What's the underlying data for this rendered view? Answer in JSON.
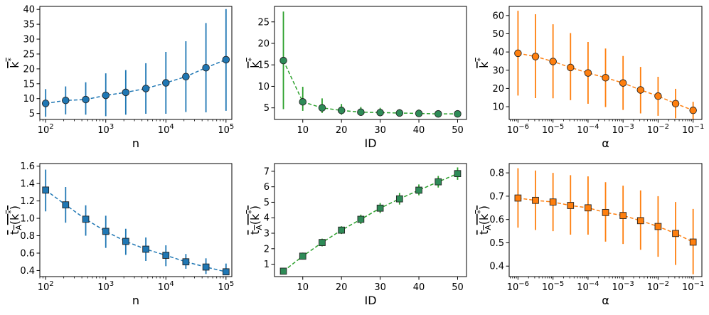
{
  "chart_data": [
    {
      "id": "p1",
      "type": "line",
      "xscale": "log",
      "xlim": [
        80,
        125000
      ],
      "ylim": [
        3,
        41
      ],
      "xticks": [
        100,
        1000,
        10000,
        100000
      ],
      "xtick_labels": [
        "10^2",
        "10^3",
        "10^4",
        "10^5"
      ],
      "yticks": [
        5,
        10,
        15,
        20,
        25,
        30,
        35,
        40
      ],
      "ytick_labels": [
        "5",
        "10",
        "15",
        "20",
        "25",
        "30",
        "35",
        "40"
      ],
      "xlabel": "n",
      "ylabel_text": "k",
      "ylabel_sup": "*",
      "ylabel_parts": [
        "k"
      ],
      "color": "#1f77b4",
      "marker": "circle",
      "series": [
        {
          "name": "mean",
          "x": [
            100,
            215,
            464,
            1000,
            2150,
            4640,
            10000,
            21500,
            46400,
            100000
          ],
          "y": [
            8.4,
            9.4,
            9.7,
            11.1,
            12.1,
            13.4,
            15.3,
            17.4,
            20.4,
            23.1
          ],
          "err_low": [
            3.9,
            4.7,
            4.6,
            4.1,
            4.6,
            4.9,
            4.9,
            5.5,
            5.4,
            5.9
          ],
          "err_high": [
            13.2,
            14.1,
            15.5,
            18.5,
            19.6,
            21.9,
            25.7,
            29.3,
            35.4,
            40.1
          ]
        }
      ]
    },
    {
      "id": "p2",
      "type": "line",
      "xscale": "linear",
      "xlim": [
        2.7,
        52.3
      ],
      "ylim": [
        2.3,
        28.6
      ],
      "xticks": [
        10,
        20,
        30,
        40,
        50
      ],
      "xtick_labels": [
        "10",
        "20",
        "30",
        "40",
        "50"
      ],
      "yticks": [
        5,
        10,
        15,
        20,
        25
      ],
      "ytick_labels": [
        "5",
        "10",
        "15",
        "20",
        "25"
      ],
      "xlabel": "ID",
      "ylabel_text": "k",
      "ylabel_sup": "*",
      "ylabel_parts": [
        "k"
      ],
      "color": "#2ca02c",
      "marker_fill": "#2e8b57",
      "marker": "circle",
      "series": [
        {
          "name": "mean",
          "x": [
            5,
            10,
            15,
            20,
            25,
            30,
            35,
            40,
            45,
            50
          ],
          "y": [
            16.0,
            6.4,
            5.0,
            4.4,
            4.0,
            3.9,
            3.8,
            3.7,
            3.6,
            3.6
          ],
          "err_low": [
            4.7,
            4.3,
            3.8,
            3.4,
            3.2,
            3.1,
            3.1,
            3.0,
            3.0,
            2.9
          ],
          "err_high": [
            27.4,
            9.9,
            7.2,
            5.9,
            5.2,
            5.0,
            4.7,
            4.6,
            4.4,
            4.2
          ]
        }
      ]
    },
    {
      "id": "p3",
      "type": "line",
      "xscale": "log",
      "xlim": [
        5.6e-07,
        0.178
      ],
      "ylim": [
        3,
        65
      ],
      "xticks": [
        1e-06,
        1e-05,
        0.0001,
        0.001,
        0.01,
        0.1
      ],
      "xtick_labels": [
        "10^−6",
        "10^−5",
        "10^−4",
        "10^−3",
        "10^−2",
        "10^−1"
      ],
      "yticks": [
        10,
        20,
        30,
        40,
        50,
        60
      ],
      "ytick_labels": [
        "10",
        "20",
        "30",
        "40",
        "50",
        "60"
      ],
      "xlabel": "α",
      "ylabel_text": "k",
      "ylabel_sup": "*",
      "ylabel_parts": [
        "k"
      ],
      "color": "#ff7f0e",
      "marker": "circle",
      "series": [
        {
          "name": "mean",
          "x": [
            1e-06,
            3.16e-06,
            1e-05,
            3.16e-05,
            0.0001,
            0.000316,
            0.001,
            0.00316,
            0.01,
            0.0316,
            0.1
          ],
          "y": [
            39.3,
            37.5,
            34.8,
            31.5,
            28.5,
            25.9,
            23.0,
            19.2,
            15.8,
            11.7,
            8.0
          ],
          "err_low": [
            16.1,
            14.7,
            14.6,
            13.6,
            11.6,
            9.8,
            8.2,
            6.3,
            5.0,
            3.6,
            3.3
          ],
          "err_high": [
            62.6,
            60.7,
            55.2,
            50.4,
            45.5,
            41.9,
            37.8,
            31.8,
            26.4,
            19.8,
            12.7
          ]
        }
      ]
    },
    {
      "id": "p4",
      "type": "line",
      "xscale": "log",
      "xlim": [
        80,
        125000
      ],
      "ylim": [
        0.33,
        1.63
      ],
      "xticks": [
        100,
        1000,
        10000,
        100000
      ],
      "xtick_labels": [
        "10^2",
        "10^3",
        "10^4",
        "10^5"
      ],
      "yticks": [
        0.4,
        0.6,
        0.8,
        1.0,
        1.2,
        1.4,
        1.6
      ],
      "ytick_labels": [
        "0.4",
        "0.6",
        "0.8",
        "1.0",
        "1.2",
        "1.4",
        "1.6"
      ],
      "xlabel": "n",
      "ylabel_text": "tA(k*)",
      "ylabel_parts": [
        "t",
        "A",
        "(k",
        "*",
        ")"
      ],
      "color": "#1f77b4",
      "marker": "square",
      "series": [
        {
          "name": "mean",
          "x": [
            100,
            215,
            464,
            1000,
            2150,
            4640,
            10000,
            21500,
            46400,
            100000
          ],
          "y": [
            1.325,
            1.155,
            0.99,
            0.85,
            0.735,
            0.645,
            0.575,
            0.5,
            0.44,
            0.385
          ],
          "err_low": [
            1.08,
            0.95,
            0.8,
            0.66,
            0.58,
            0.51,
            0.45,
            0.42,
            0.36,
            0.35
          ],
          "err_high": [
            1.56,
            1.36,
            1.15,
            1.03,
            0.88,
            0.78,
            0.69,
            0.59,
            0.54,
            0.48
          ]
        }
      ]
    },
    {
      "id": "p5",
      "type": "line",
      "xscale": "linear",
      "xlim": [
        2.7,
        52.3
      ],
      "ylim": [
        0.2,
        7.5
      ],
      "xticks": [
        10,
        20,
        30,
        40,
        50
      ],
      "xtick_labels": [
        "10",
        "20",
        "30",
        "40",
        "50"
      ],
      "yticks": [
        1,
        2,
        3,
        4,
        5,
        6,
        7
      ],
      "ytick_labels": [
        "1",
        "2",
        "3",
        "4",
        "5",
        "6",
        "7"
      ],
      "xlabel": "ID",
      "ylabel_text": "tA(k*)",
      "ylabel_parts": [
        "t",
        "A",
        "(k",
        "*",
        ")"
      ],
      "color": "#2ca02c",
      "marker_fill": "#2e8b57",
      "marker": "square",
      "series": [
        {
          "name": "mean",
          "x": [
            5,
            10,
            15,
            20,
            25,
            30,
            35,
            40,
            45,
            50
          ],
          "y": [
            0.55,
            1.52,
            2.4,
            3.2,
            3.9,
            4.62,
            5.22,
            5.78,
            6.32,
            6.85
          ],
          "err_low": [
            0.45,
            1.3,
            2.15,
            2.95,
            3.6,
            4.3,
            4.85,
            5.45,
            5.95,
            6.45
          ],
          "err_high": [
            0.65,
            1.75,
            2.65,
            3.45,
            4.2,
            4.95,
            5.6,
            6.15,
            6.7,
            7.25
          ]
        }
      ]
    },
    {
      "id": "p6",
      "type": "line",
      "xscale": "log",
      "xlim": [
        5.6e-07,
        0.178
      ],
      "ylim": [
        0.355,
        0.84
      ],
      "xticks": [
        1e-06,
        1e-05,
        0.0001,
        0.001,
        0.01,
        0.1
      ],
      "xtick_labels": [
        "10^−6",
        "10^−5",
        "10^−4",
        "10^−3",
        "10^−2",
        "10^−1"
      ],
      "yticks": [
        0.4,
        0.5,
        0.6,
        0.7,
        0.8
      ],
      "ytick_labels": [
        "0.4",
        "0.5",
        "0.6",
        "0.7",
        "0.8"
      ],
      "xlabel": "α",
      "ylabel_text": "tA(k*)",
      "ylabel_parts": [
        "t",
        "A",
        "(k",
        "*",
        ")"
      ],
      "color": "#ff7f0e",
      "marker": "square",
      "series": [
        {
          "name": "mean",
          "x": [
            1e-06,
            3.16e-06,
            1e-05,
            3.16e-05,
            0.0001,
            0.000316,
            0.001,
            0.00316,
            0.01,
            0.0316,
            0.1
          ],
          "y": [
            0.692,
            0.682,
            0.675,
            0.66,
            0.65,
            0.63,
            0.617,
            0.595,
            0.57,
            0.54,
            0.503
          ],
          "err_low": [
            0.565,
            0.555,
            0.55,
            0.535,
            0.535,
            0.505,
            0.495,
            0.47,
            0.44,
            0.405,
            0.365
          ],
          "err_high": [
            0.82,
            0.81,
            0.8,
            0.79,
            0.785,
            0.76,
            0.745,
            0.725,
            0.7,
            0.675,
            0.645
          ]
        }
      ]
    }
  ]
}
